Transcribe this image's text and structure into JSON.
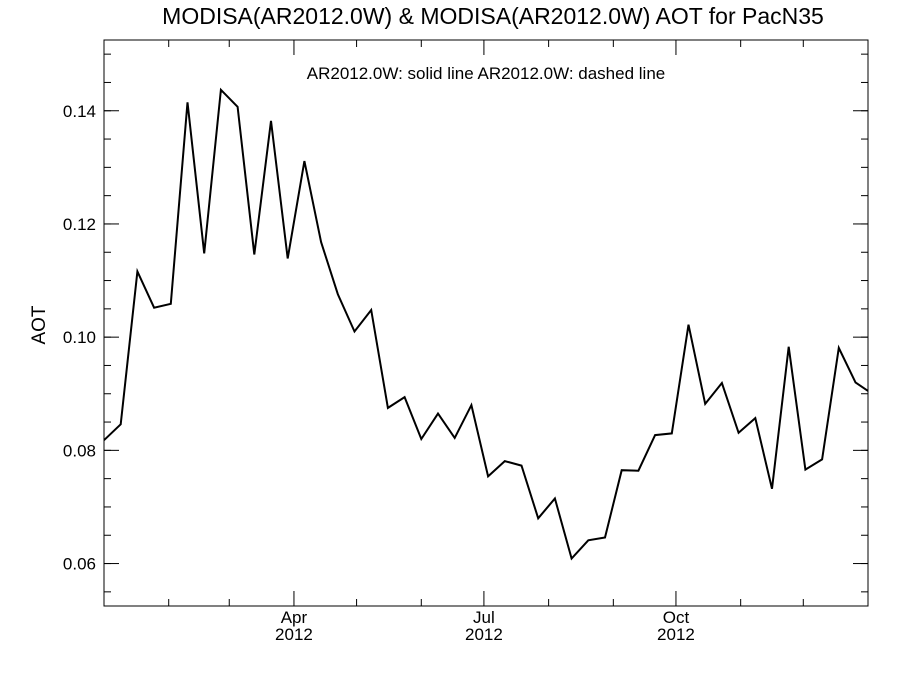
{
  "chart_data": {
    "type": "line",
    "title": "MODISA(AR2012.0W) & MODISA(AR2012.0W)  AOT for PacN35",
    "legend_text": "AR2012.0W: solid line   AR2012.0W: dashed line",
    "xlabel": "",
    "ylabel": "AOT",
    "xlim": [
      "2012-01-01",
      "2013-01-01"
    ],
    "ylim": [
      0.0525,
      0.1525
    ],
    "y_ticks": [
      0.06,
      0.08,
      0.1,
      0.12,
      0.14
    ],
    "y_tick_labels": [
      "0.06",
      "0.08",
      "0.10",
      "0.12",
      "0.14"
    ],
    "y_minor_step": 0.005,
    "x_major_ticks": [
      {
        "date": "2012-04-01",
        "label": "Apr",
        "year": "2012"
      },
      {
        "date": "2012-07-01",
        "label": "Jul",
        "year": "2012"
      },
      {
        "date": "2012-10-01",
        "label": "Oct",
        "year": "2012"
      }
    ],
    "x_minor_ticks": [
      "2012-02-01",
      "2012-03-01",
      "2012-05-01",
      "2012-06-01",
      "2012-08-01",
      "2012-09-01",
      "2012-11-01",
      "2012-12-01"
    ],
    "grid": false,
    "series": [
      {
        "style": "solid",
        "color": "#000000",
        "x": [
          "2012-01-01",
          "2012-01-09",
          "2012-01-17",
          "2012-01-25",
          "2012-02-02",
          "2012-02-10",
          "2012-02-18",
          "2012-02-26",
          "2012-03-05",
          "2012-03-13",
          "2012-03-21",
          "2012-03-29",
          "2012-04-06",
          "2012-04-14",
          "2012-04-22",
          "2012-04-30",
          "2012-05-08",
          "2012-05-16",
          "2012-05-24",
          "2012-06-01",
          "2012-06-09",
          "2012-06-17",
          "2012-06-25",
          "2012-07-03",
          "2012-07-11",
          "2012-07-19",
          "2012-07-27",
          "2012-08-04",
          "2012-08-12",
          "2012-08-20",
          "2012-08-28",
          "2012-09-05",
          "2012-09-13",
          "2012-09-21",
          "2012-09-29",
          "2012-10-07",
          "2012-10-15",
          "2012-10-23",
          "2012-10-31",
          "2012-11-08",
          "2012-11-16",
          "2012-11-24",
          "2012-12-02",
          "2012-12-10",
          "2012-12-18",
          "2012-12-26",
          "2013-01-01"
        ],
        "y": [
          0.0818,
          0.0846,
          0.1116,
          0.1052,
          0.1059,
          0.1415,
          0.1148,
          0.1437,
          0.1407,
          0.1146,
          0.1382,
          0.1139,
          0.1311,
          0.1168,
          0.1076,
          0.101,
          0.1048,
          0.0875,
          0.0894,
          0.082,
          0.0865,
          0.0822,
          0.088,
          0.0754,
          0.0781,
          0.0773,
          0.068,
          0.0715,
          0.0609,
          0.0641,
          0.0646,
          0.0765,
          0.0764,
          0.0827,
          0.083,
          0.1022,
          0.0882,
          0.0919,
          0.0831,
          0.0857,
          0.0732,
          0.0983,
          0.0766,
          0.0784,
          0.0981,
          0.092,
          0.0905
        ]
      }
    ]
  }
}
